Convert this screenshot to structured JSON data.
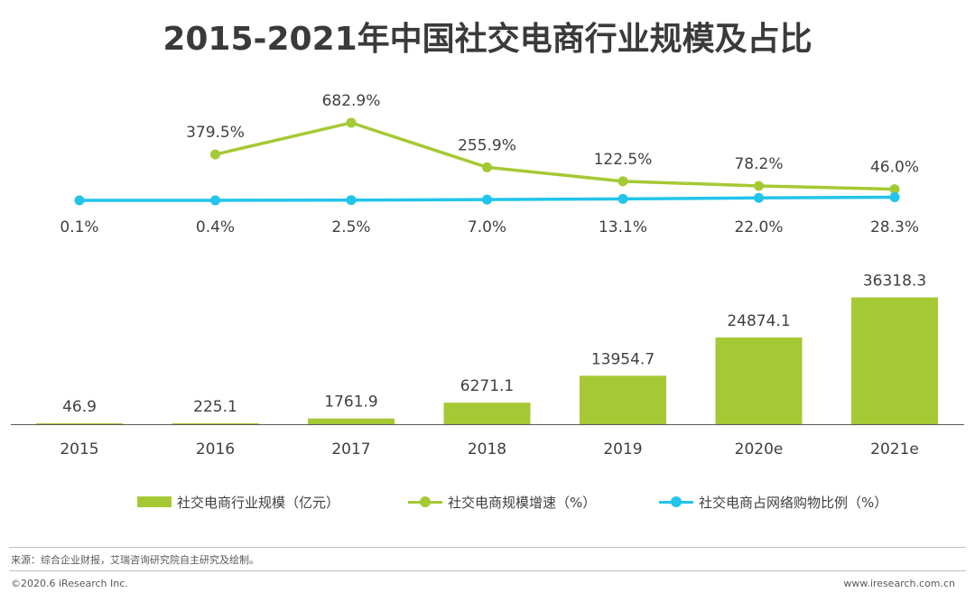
{
  "title": "2015-2021年中国社交电商行业规模及占比",
  "colors": {
    "bar": "#a5c934",
    "growth_line": "#a5c934",
    "share_line": "#22c4ea",
    "axis": "#595959",
    "text": "#404040"
  },
  "chart_data": {
    "type": "bar",
    "categories": [
      "2015",
      "2016",
      "2017",
      "2018",
      "2019",
      "2020e",
      "2021e"
    ],
    "series": [
      {
        "name": "社交电商行业规模（亿元）",
        "type": "bar",
        "values": [
          46.9,
          225.1,
          1761.9,
          6271.1,
          13954.7,
          24874.1,
          36318.3
        ],
        "labels": [
          "46.9",
          "225.1",
          "1761.9",
          "6271.1",
          "13954.7",
          "24874.1",
          "36318.3"
        ]
      },
      {
        "name": "社交电商规模增速（%）",
        "type": "line",
        "values": [
          null,
          379.5,
          682.9,
          255.9,
          122.5,
          78.2,
          46.0
        ],
        "labels": [
          null,
          "379.5%",
          "682.9%",
          "255.9%",
          "122.5%",
          "78.2%",
          "46.0%"
        ]
      },
      {
        "name": "社交电商占网络购物比例（%）",
        "type": "line",
        "values": [
          0.1,
          0.4,
          2.5,
          7.0,
          13.1,
          22.0,
          28.3
        ],
        "labels": [
          "0.1%",
          "0.4%",
          "2.5%",
          "7.0%",
          "13.1%",
          "22.0%",
          "28.3%"
        ]
      }
    ],
    "bar_ylim": [
      0,
      36318.3
    ],
    "line_ylim": [
      0,
      682.9
    ],
    "legend_position": "bottom"
  },
  "legend": {
    "bar": "社交电商行业规模（亿元）",
    "growth": "社交电商规模增速（%）",
    "share": "社交电商占网络购物比例（%）"
  },
  "footer": {
    "source": "来源：综合企业财报，艾瑞咨询研究院自主研究及绘制。",
    "copyright": "©2020.6 iResearch Inc.",
    "website": "www.iresearch.com.cn"
  }
}
